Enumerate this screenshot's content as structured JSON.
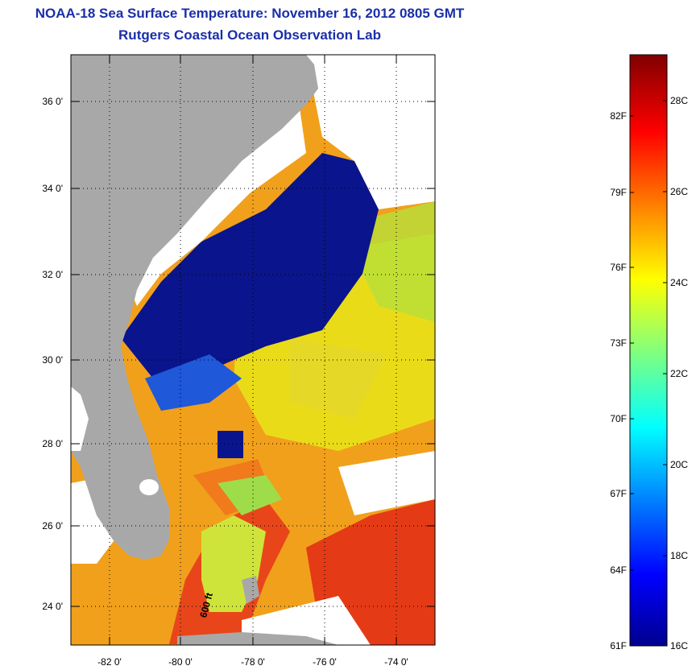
{
  "header": {
    "title": "NOAA-18 Sea Surface Temperature:  November 16, 2012 0805 GMT",
    "subtitle": "Rutgers Coastal Ocean Observation Lab"
  },
  "map": {
    "lat_labels": [
      "36 0'",
      "34 0'",
      "32 0'",
      "30 0'",
      "28 0'",
      "26 0'",
      "24 0'"
    ],
    "lon_labels": [
      "-82 0'",
      "-80 0'",
      "-78 0'",
      "-76 0'",
      "-74 0'"
    ],
    "isobath_label": "600 ft",
    "colors": {
      "land": "#a8a8a8",
      "no_data": "#ffffff",
      "cold": "#0a148c",
      "warm": "#e83a14"
    }
  },
  "colorbar": {
    "f_labels": [
      "82F",
      "79F",
      "76F",
      "73F",
      "70F",
      "67F",
      "64F",
      "61F"
    ],
    "c_labels": [
      "28C",
      "26C",
      "24C",
      "22C",
      "20C",
      "18C",
      "16C"
    ],
    "min_label": "61F",
    "max_c_label": "16C"
  }
}
